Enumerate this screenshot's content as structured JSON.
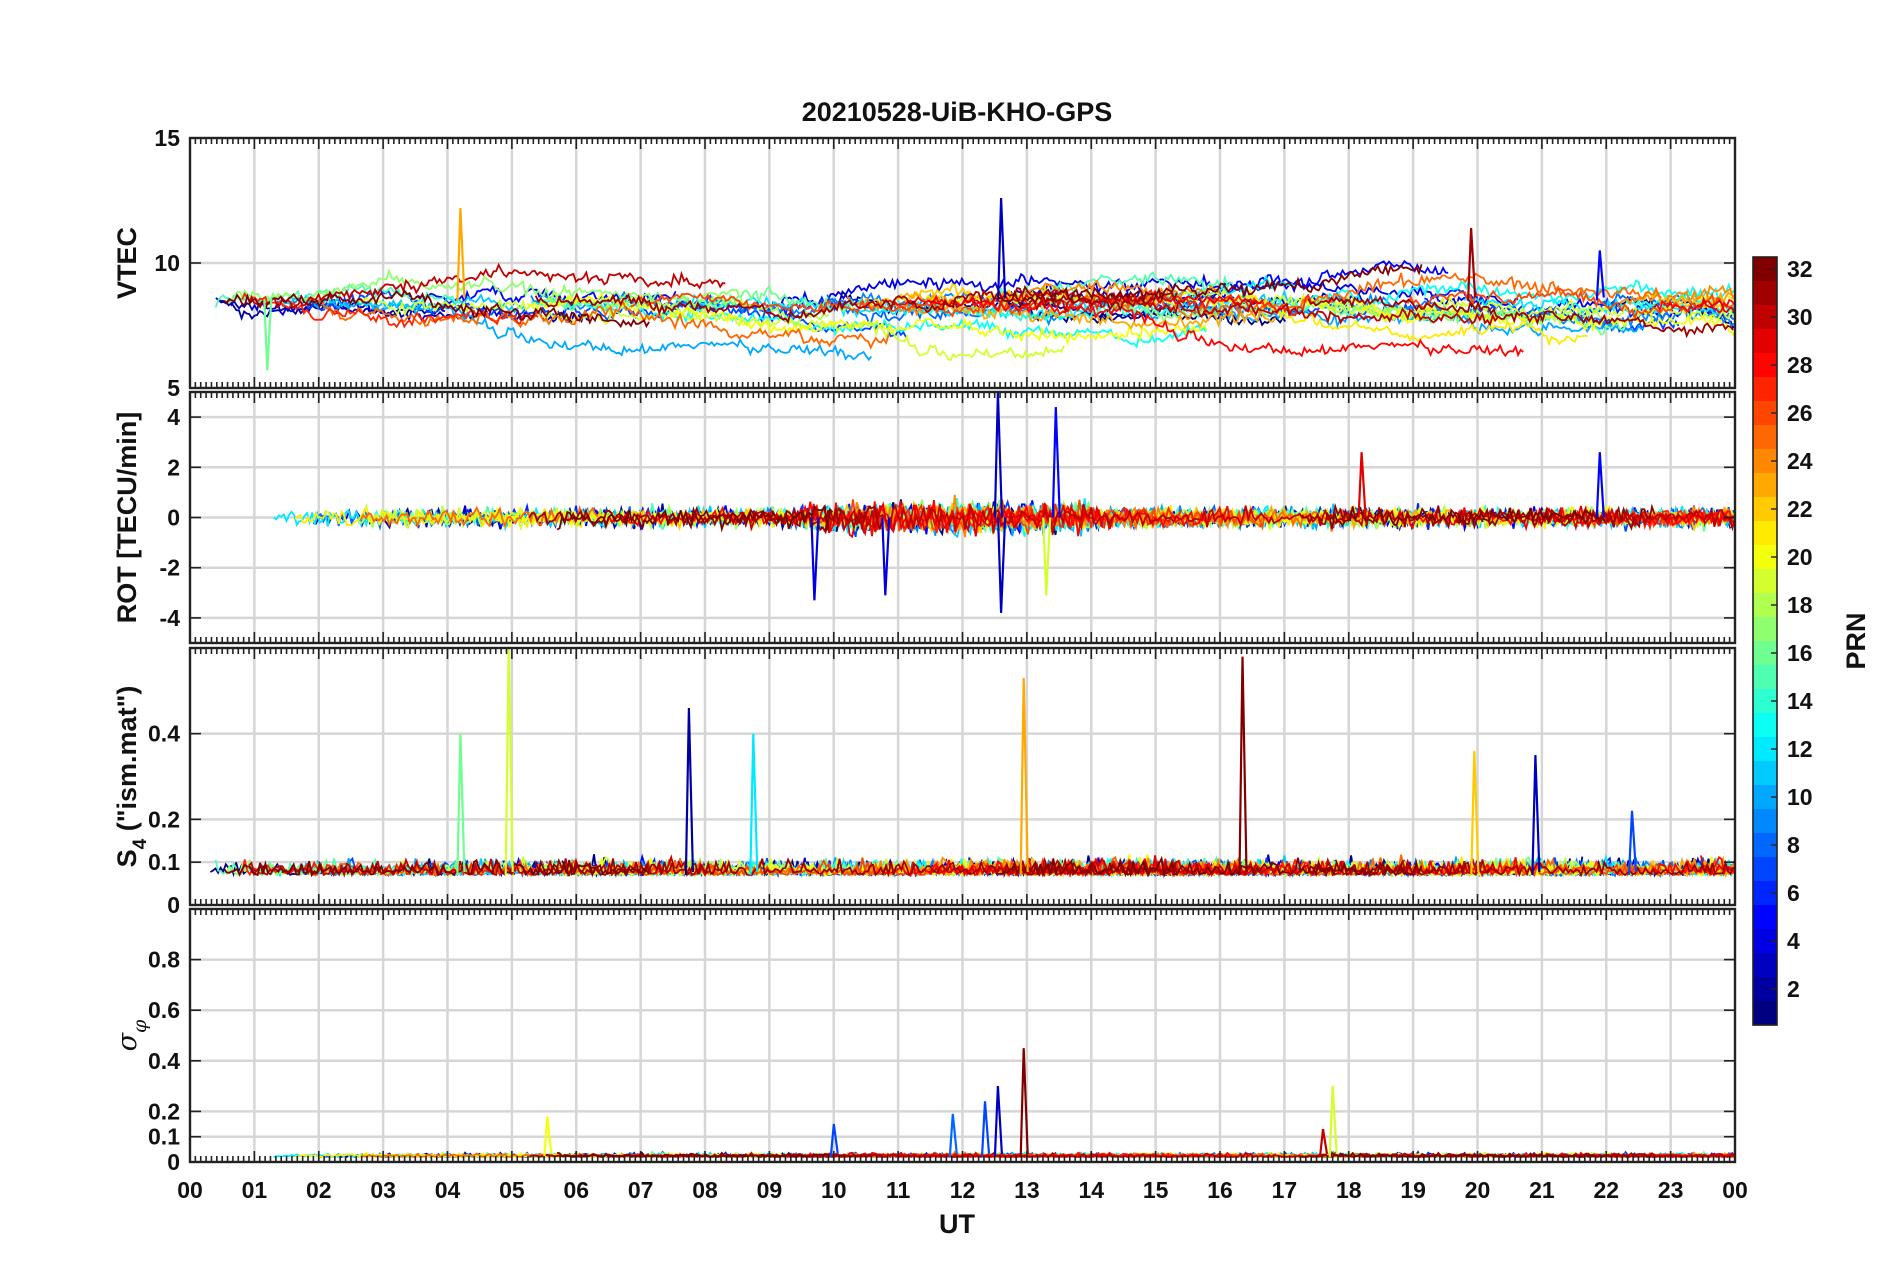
{
  "figure": {
    "title": "20210528-UiB-KHO-GPS",
    "xlabel": "UT",
    "x_tick_labels": [
      "00",
      "01",
      "02",
      "03",
      "04",
      "05",
      "06",
      "07",
      "08",
      "09",
      "10",
      "11",
      "12",
      "13",
      "14",
      "15",
      "16",
      "17",
      "18",
      "19",
      "20",
      "21",
      "22",
      "23",
      "00"
    ]
  },
  "colorbar": {
    "label": "PRN",
    "tick_labels": [
      "2",
      "4",
      "6",
      "8",
      "10",
      "12",
      "14",
      "16",
      "18",
      "20",
      "22",
      "24",
      "26",
      "28",
      "30",
      "32"
    ],
    "range": [
      1,
      32
    ],
    "colormap": "jet"
  },
  "chart_data": [
    {
      "type": "line",
      "panel": "VTEC",
      "ylabel": "VTEC",
      "x_range_hours": [
        0,
        24
      ],
      "ylim": [
        5,
        15
      ],
      "y_tick_labels": [
        "5",
        "10",
        "15"
      ],
      "grid": true,
      "series_count": 32,
      "color_by": "PRN",
      "baseline_level": 8.5,
      "noise_amplitude": 0.8,
      "notable_features": [
        {
          "x_hours": 4.2,
          "value": 12.2,
          "prn": 23
        },
        {
          "x_hours": 12.6,
          "value": 12.6,
          "prn": 3
        },
        {
          "x_hours": 19.9,
          "value": 11.4,
          "prn": 31
        },
        {
          "x_hours": 21.9,
          "value": 10.5,
          "prn": 5
        },
        {
          "x_hours": 1.2,
          "value": 5.7,
          "prn": 16
        }
      ]
    },
    {
      "type": "line",
      "panel": "ROT",
      "ylabel": "ROT [TECU/min]",
      "x_range_hours": [
        0,
        24
      ],
      "ylim": [
        -5,
        5
      ],
      "y_tick_labels": [
        "-4",
        "-2",
        "0",
        "2",
        "4"
      ],
      "grid": true,
      "series_count": 32,
      "color_by": "PRN",
      "baseline_level": 0,
      "noise_amplitude": 0.35,
      "notable_features": [
        {
          "x_hours": 12.55,
          "value": 5.0,
          "prn": 3
        },
        {
          "x_hours": 12.6,
          "value": -3.8,
          "prn": 3
        },
        {
          "x_hours": 13.45,
          "value": 4.4,
          "prn": 5
        },
        {
          "x_hours": 9.7,
          "value": -3.3,
          "prn": 4
        },
        {
          "x_hours": 10.8,
          "value": -3.1,
          "prn": 4
        },
        {
          "x_hours": 13.3,
          "value": -3.1,
          "prn": 19
        },
        {
          "x_hours": 18.2,
          "value": 2.6,
          "prn": 29
        },
        {
          "x_hours": 21.9,
          "value": 2.6,
          "prn": 5
        }
      ]
    },
    {
      "type": "line",
      "panel": "S4",
      "ylabel": "S4 (\"ism.mat\")",
      "ylabel_main": "S",
      "ylabel_sub": "4",
      "ylabel_rest": " (\"ism.mat\")",
      "x_range_hours": [
        0,
        24
      ],
      "ylim": [
        0,
        0.6
      ],
      "y_tick_labels": [
        "0",
        "0.1",
        "0.2",
        "0.4"
      ],
      "grid": true,
      "series_count": 32,
      "color_by": "PRN",
      "baseline_level": 0.07,
      "noise_amplitude": 0.03,
      "notable_features": [
        {
          "x_hours": 4.95,
          "value": 0.6,
          "prn": 19
        },
        {
          "x_hours": 16.35,
          "value": 0.58,
          "prn": 32
        },
        {
          "x_hours": 12.95,
          "value": 0.53,
          "prn": 23
        },
        {
          "x_hours": 7.75,
          "value": 0.46,
          "prn": 2
        },
        {
          "x_hours": 8.75,
          "value": 0.4,
          "prn": 12
        },
        {
          "x_hours": 4.2,
          "value": 0.4,
          "prn": 16
        },
        {
          "x_hours": 19.95,
          "value": 0.36,
          "prn": 22
        },
        {
          "x_hours": 20.9,
          "value": 0.35,
          "prn": 3
        },
        {
          "x_hours": 22.4,
          "value": 0.22,
          "prn": 7
        }
      ]
    },
    {
      "type": "line",
      "panel": "sigma_phi",
      "ylabel": "σ φ",
      "ylabel_main": "σ",
      "ylabel_sub": "φ",
      "x_range_hours": [
        0,
        24
      ],
      "ylim": [
        0,
        1
      ],
      "y_tick_labels": [
        "0",
        "0.1",
        "0.2",
        "0.4",
        "0.6",
        "0.8"
      ],
      "grid": true,
      "series_count": 32,
      "color_by": "PRN",
      "baseline_level": 0.02,
      "noise_amplitude": 0.012,
      "notable_features": [
        {
          "x_hours": 12.95,
          "value": 0.45,
          "prn": 32
        },
        {
          "x_hours": 12.55,
          "value": 0.3,
          "prn": 3
        },
        {
          "x_hours": 17.75,
          "value": 0.3,
          "prn": 19
        },
        {
          "x_hours": 12.35,
          "value": 0.24,
          "prn": 7
        },
        {
          "x_hours": 11.85,
          "value": 0.19,
          "prn": 8
        },
        {
          "x_hours": 5.55,
          "value": 0.18,
          "prn": 20
        },
        {
          "x_hours": 10.0,
          "value": 0.15,
          "prn": 7
        },
        {
          "x_hours": 17.6,
          "value": 0.13,
          "prn": 30
        }
      ]
    }
  ]
}
